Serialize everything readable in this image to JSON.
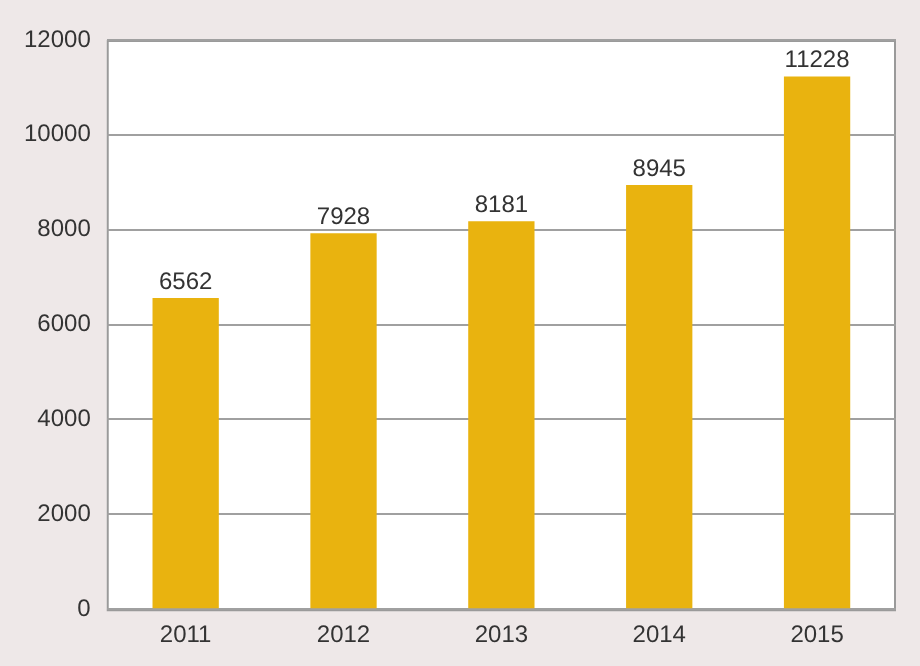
{
  "chart_data": {
    "type": "bar",
    "categories": [
      "2011",
      "2012",
      "2013",
      "2014",
      "2015"
    ],
    "values": [
      6562,
      7928,
      8181,
      8945,
      11228
    ],
    "color": "#e9b30f",
    "ylim": [
      0,
      12000
    ],
    "yticks": [
      0,
      2000,
      4000,
      6000,
      8000,
      10000,
      12000
    ],
    "grid": "y",
    "data_labels": true
  }
}
